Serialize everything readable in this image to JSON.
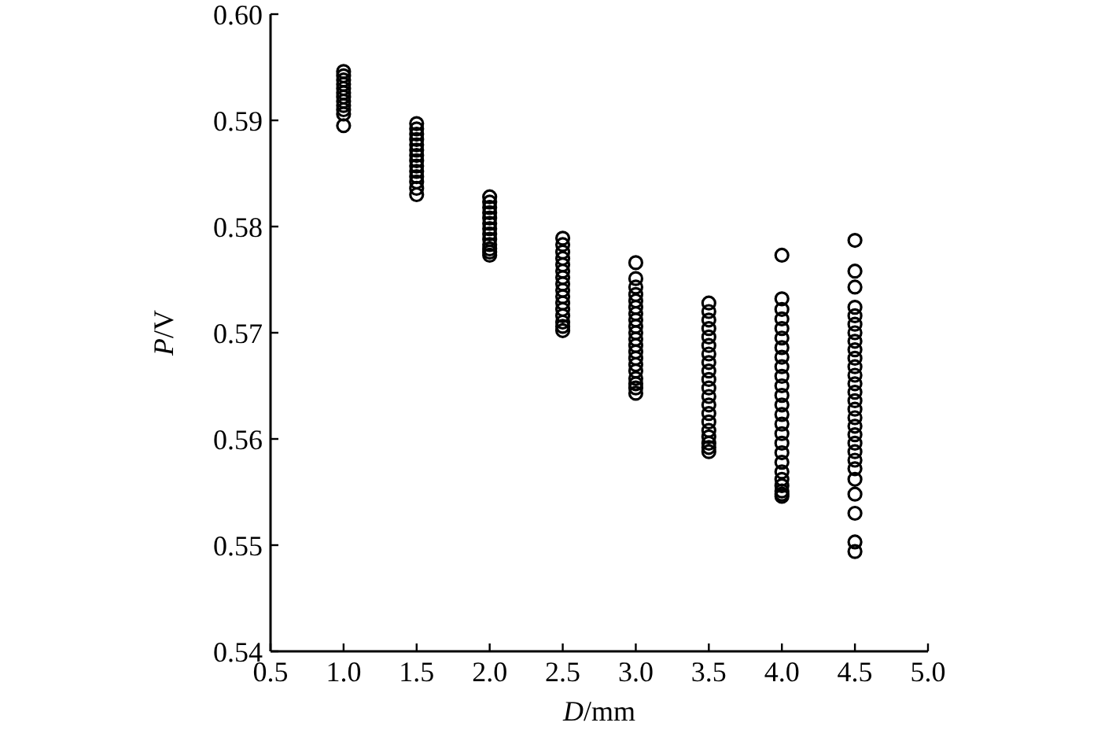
{
  "chart_data": {
    "type": "scatter",
    "xlabel": "D/mm",
    "ylabel": "P/V",
    "xlim": [
      0.5,
      5.0
    ],
    "xticks": [
      {
        "value": 0.5,
        "label": "0.5"
      },
      {
        "value": 1.0,
        "label": "1.0"
      },
      {
        "value": 1.5,
        "label": "1.5"
      },
      {
        "value": 2.0,
        "label": "2.0"
      },
      {
        "value": 2.5,
        "label": "2.5"
      },
      {
        "value": 3.0,
        "label": "3.0"
      },
      {
        "value": 3.5,
        "label": "3.5"
      },
      {
        "value": 4.0,
        "label": "4.0"
      },
      {
        "value": 4.5,
        "label": "4.5"
      },
      {
        "value": 5.0,
        "label": "5.0"
      }
    ],
    "ylim": [
      0.54,
      0.6
    ],
    "yticks": [
      {
        "value": 0.54,
        "label": "0.54"
      },
      {
        "value": 0.55,
        "label": "0.55"
      },
      {
        "value": 0.56,
        "label": "0.56"
      },
      {
        "value": 0.57,
        "label": "0.57"
      },
      {
        "value": 0.58,
        "label": "0.58"
      },
      {
        "value": 0.59,
        "label": "0.59"
      },
      {
        "value": 0.6,
        "label": "0.60"
      }
    ],
    "grid": false,
    "marker": "circle",
    "series": [
      {
        "color": "#000000",
        "x": [
          1,
          1,
          1,
          1,
          1,
          1,
          1,
          1,
          1,
          1,
          1,
          1,
          1.5,
          1.5,
          1.5,
          1.5,
          1.5,
          1.5,
          1.5,
          1.5,
          1.5,
          1.5,
          1.5,
          1.5,
          1.5,
          1.5,
          2,
          2,
          2,
          2,
          2,
          2,
          2,
          2,
          2,
          2,
          2,
          2,
          2,
          2.5,
          2.5,
          2.5,
          2.5,
          2.5,
          2.5,
          2.5,
          2.5,
          2.5,
          2.5,
          2.5,
          2.5,
          2.5,
          2.5,
          2.5,
          2.5,
          3,
          3,
          3,
          3,
          3,
          3,
          3,
          3,
          3,
          3,
          3,
          3,
          3,
          3,
          3,
          3,
          3,
          3,
          3,
          3,
          3.5,
          3.5,
          3.5,
          3.5,
          3.5,
          3.5,
          3.5,
          3.5,
          3.5,
          3.5,
          3.5,
          3.5,
          3.5,
          3.5,
          3.5,
          3.5,
          3.5,
          3.5,
          3.5,
          3.5,
          4,
          4,
          4,
          4,
          4,
          4,
          4,
          4,
          4,
          4,
          4,
          4,
          4,
          4,
          4,
          4,
          4,
          4,
          4,
          4,
          4,
          4,
          4,
          4,
          4,
          4.5,
          4.5,
          4.5,
          4.5,
          4.5,
          4.5,
          4.5,
          4.5,
          4.5,
          4.5,
          4.5,
          4.5,
          4.5,
          4.5,
          4.5,
          4.5,
          4.5,
          4.5,
          4.5,
          4.5,
          4.5,
          4.5,
          4.5,
          4.5,
          4.5,
          4.5,
          4.5,
          4.5
        ],
        "values": [
          0.5946,
          0.5942,
          0.5938,
          0.5934,
          0.593,
          0.5926,
          0.5922,
          0.5918,
          0.5914,
          0.591,
          0.5906,
          0.5895,
          0.5897,
          0.5892,
          0.5887,
          0.5882,
          0.5877,
          0.5872,
          0.5867,
          0.5862,
          0.5857,
          0.5852,
          0.5847,
          0.5842,
          0.5836,
          0.583,
          0.5828,
          0.5823,
          0.5818,
          0.5813,
          0.5808,
          0.5803,
          0.5798,
          0.5793,
          0.5788,
          0.5783,
          0.5779,
          0.5776,
          0.5773,
          0.5789,
          0.5783,
          0.5776,
          0.577,
          0.5764,
          0.5758,
          0.5752,
          0.5746,
          0.574,
          0.5734,
          0.5728,
          0.5722,
          0.5716,
          0.571,
          0.5706,
          0.5702,
          0.5766,
          0.5751,
          0.5743,
          0.5736,
          0.573,
          0.5724,
          0.5718,
          0.5712,
          0.5706,
          0.57,
          0.5694,
          0.5688,
          0.5682,
          0.5676,
          0.567,
          0.5664,
          0.5657,
          0.5652,
          0.5648,
          0.5643,
          0.5728,
          0.572,
          0.5712,
          0.5704,
          0.5696,
          0.5688,
          0.568,
          0.5672,
          0.5664,
          0.5656,
          0.5648,
          0.564,
          0.5632,
          0.5624,
          0.5616,
          0.5608,
          0.5602,
          0.5596,
          0.5592,
          0.5588,
          0.5773,
          0.5732,
          0.5722,
          0.5713,
          0.5704,
          0.5695,
          0.5686,
          0.5677,
          0.5668,
          0.5659,
          0.565,
          0.5641,
          0.5632,
          0.5623,
          0.5614,
          0.5605,
          0.5596,
          0.5587,
          0.5578,
          0.5569,
          0.5562,
          0.5556,
          0.5551,
          0.5548,
          0.5546,
          0.5787,
          0.5758,
          0.5743,
          0.5724,
          0.5716,
          0.5708,
          0.57,
          0.5692,
          0.5684,
          0.5676,
          0.5668,
          0.566,
          0.5652,
          0.5644,
          0.5636,
          0.5628,
          0.562,
          0.5612,
          0.5604,
          0.5596,
          0.5588,
          0.558,
          0.5572,
          0.5562,
          0.5548,
          0.553,
          0.5503,
          0.5494
        ]
      }
    ]
  }
}
